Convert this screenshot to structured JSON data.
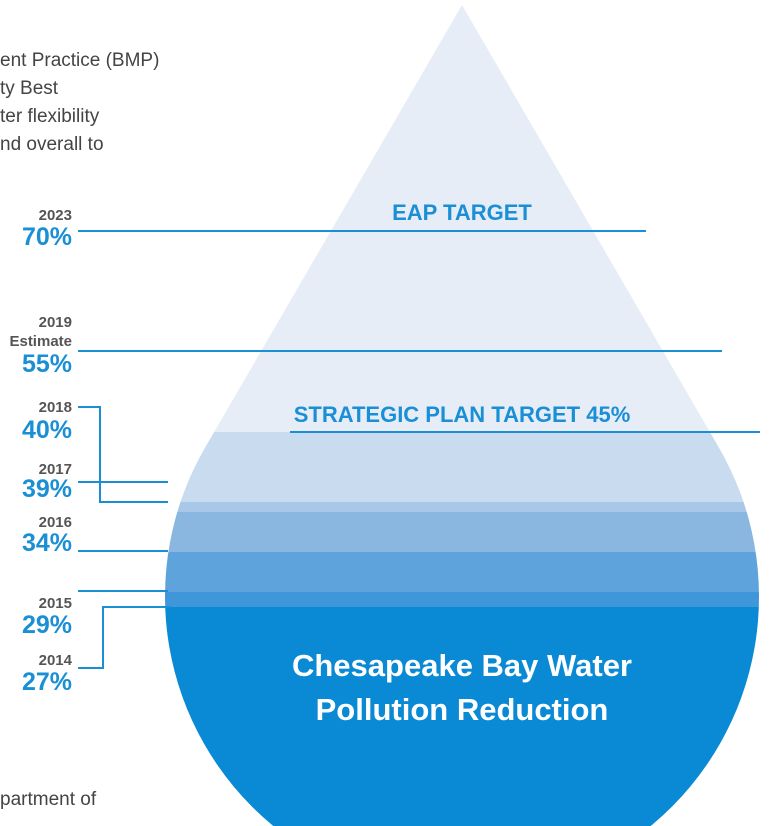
{
  "body_text": {
    "lines": [
      "ent Practice (BMP)",
      "ty Best",
      "ter flexibility",
      "nd overall to"
    ],
    "footer_line": "partment of"
  },
  "markers": [
    {
      "year": "2023",
      "percent": "70%"
    },
    {
      "year": "2019",
      "note": "Estimate",
      "percent": "55%"
    },
    {
      "year": "2018",
      "percent": "40%"
    },
    {
      "year": "2017",
      "percent": "39%"
    },
    {
      "year": "2016",
      "percent": "34%"
    },
    {
      "year": "2015",
      "percent": "29%"
    },
    {
      "year": "2014",
      "percent": "27%"
    }
  ],
  "drop": {
    "eap_label": "EAP TARGET",
    "strategic_label": "STRATEGIC PLAN TARGET 45%",
    "title_lines": [
      "Chesapeake Bay Water",
      "Pollution Reduction"
    ]
  }
}
